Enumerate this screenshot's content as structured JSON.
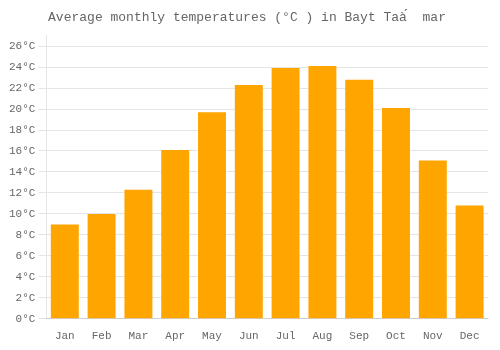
{
  "chart_data": {
    "type": "bar",
    "title": "Average monthly temperatures (°C ) in Bayt Taà́  mar",
    "categories": [
      "Jan",
      "Feb",
      "Mar",
      "Apr",
      "May",
      "Jun",
      "Jul",
      "Aug",
      "Sep",
      "Oct",
      "Nov",
      "Dec"
    ],
    "values": [
      9,
      10,
      12.3,
      16.1,
      19.7,
      22.3,
      23.9,
      24.1,
      22.8,
      20.1,
      15.1,
      10.8
    ],
    "color": "#FFA500",
    "ylim": [
      0,
      27
    ],
    "yticks": [
      {
        "value": 0,
        "label": "0°C"
      },
      {
        "value": 2,
        "label": "2°C"
      },
      {
        "value": 4,
        "label": "4°C"
      },
      {
        "value": 6,
        "label": "6°C"
      },
      {
        "value": 8,
        "label": "8°C"
      },
      {
        "value": 10,
        "label": "10°C"
      },
      {
        "value": 12,
        "label": "12°C"
      },
      {
        "value": 14,
        "label": "14°C"
      },
      {
        "value": 16,
        "label": "16°C"
      },
      {
        "value": 18,
        "label": "18°C"
      },
      {
        "value": 20,
        "label": "20°C"
      },
      {
        "value": 22,
        "label": "22°C"
      },
      {
        "value": 24,
        "label": "24°C"
      },
      {
        "value": 26,
        "label": "26°C"
      }
    ],
    "grid": true
  }
}
